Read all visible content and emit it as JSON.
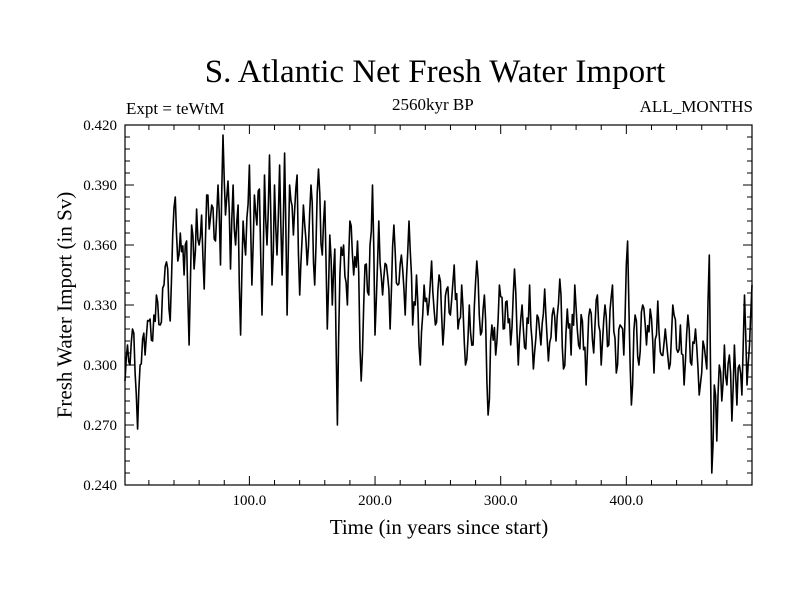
{
  "chart_data": {
    "type": "line",
    "title": "S. Atlantic Net Fresh Water Import",
    "subtitle": "2560kyr BP",
    "experiment_label": "Expt = teWtM",
    "period_label": "ALL_MONTHS",
    "xlabel": "Time (in years since start)",
    "ylabel": "Fresh Water Import (in Sv)",
    "xlim": [
      1,
      500
    ],
    "ylim": [
      0.24,
      0.42
    ],
    "x_ticks": [
      100,
      200,
      300,
      400
    ],
    "x_tick_labels": [
      "100.0",
      "200.0",
      "300.0",
      "400.0"
    ],
    "y_ticks": [
      0.24,
      0.27,
      0.3,
      0.33,
      0.36,
      0.39,
      0.42
    ],
    "y_tick_labels": [
      "0.240",
      "0.270",
      "0.300",
      "0.330",
      "0.360",
      "0.390",
      "0.420"
    ],
    "grid": false,
    "series": [
      {
        "name": "Fresh Water Import",
        "color": "#000000",
        "anchor_points": [
          [
            1,
            0.292
          ],
          [
            3,
            0.31
          ],
          [
            5,
            0.3
          ],
          [
            7,
            0.318
          ],
          [
            9,
            0.296
          ],
          [
            11,
            0.268
          ],
          [
            13,
            0.3
          ],
          [
            15,
            0.313
          ],
          [
            17,
            0.305
          ],
          [
            20,
            0.322
          ],
          [
            23,
            0.312
          ],
          [
            26,
            0.335
          ],
          [
            29,
            0.32
          ],
          [
            32,
            0.34
          ],
          [
            35,
            0.348
          ],
          [
            37,
            0.322
          ],
          [
            39,
            0.365
          ],
          [
            41,
            0.384
          ],
          [
            43,
            0.352
          ],
          [
            45,
            0.366
          ],
          [
            48,
            0.345
          ],
          [
            50,
            0.362
          ],
          [
            52,
            0.31
          ],
          [
            54,
            0.37
          ],
          [
            56,
            0.348
          ],
          [
            58,
            0.378
          ],
          [
            60,
            0.36
          ],
          [
            62,
            0.375
          ],
          [
            64,
            0.338
          ],
          [
            66,
            0.385
          ],
          [
            68,
            0.368
          ],
          [
            70,
            0.38
          ],
          [
            73,
            0.362
          ],
          [
            75,
            0.39
          ],
          [
            77,
            0.35
          ],
          [
            79,
            0.415
          ],
          [
            81,
            0.375
          ],
          [
            83,
            0.392
          ],
          [
            85,
            0.348
          ],
          [
            87,
            0.39
          ],
          [
            89,
            0.36
          ],
          [
            91,
            0.38
          ],
          [
            93,
            0.315
          ],
          [
            95,
            0.372
          ],
          [
            97,
            0.355
          ],
          [
            100,
            0.4
          ],
          [
            102,
            0.34
          ],
          [
            104,
            0.385
          ],
          [
            106,
            0.37
          ],
          [
            108,
            0.388
          ],
          [
            110,
            0.325
          ],
          [
            112,
            0.395
          ],
          [
            114,
            0.36
          ],
          [
            116,
            0.405
          ],
          [
            118,
            0.34
          ],
          [
            120,
            0.39
          ],
          [
            122,
            0.355
          ],
          [
            124,
            0.4
          ],
          [
            126,
            0.345
          ],
          [
            128,
            0.406
          ],
          [
            130,
            0.325
          ],
          [
            132,
            0.39
          ],
          [
            135,
            0.365
          ],
          [
            138,
            0.395
          ],
          [
            140,
            0.335
          ],
          [
            143,
            0.38
          ],
          [
            146,
            0.35
          ],
          [
            149,
            0.39
          ],
          [
            152,
            0.34
          ],
          [
            155,
            0.398
          ],
          [
            158,
            0.355
          ],
          [
            160,
            0.382
          ],
          [
            162,
            0.318
          ],
          [
            164,
            0.365
          ],
          [
            166,
            0.33
          ],
          [
            168,
            0.358
          ],
          [
            170,
            0.27
          ],
          [
            172,
            0.345
          ],
          [
            175,
            0.36
          ],
          [
            178,
            0.33
          ],
          [
            180,
            0.372
          ],
          [
            183,
            0.345
          ],
          [
            186,
            0.362
          ],
          [
            189,
            0.292
          ],
          [
            192,
            0.35
          ],
          [
            195,
            0.335
          ],
          [
            198,
            0.39
          ],
          [
            200,
            0.315
          ],
          [
            203,
            0.372
          ],
          [
            206,
            0.335
          ],
          [
            209,
            0.35
          ],
          [
            212,
            0.318
          ],
          [
            215,
            0.37
          ],
          [
            218,
            0.34
          ],
          [
            221,
            0.355
          ],
          [
            224,
            0.325
          ],
          [
            227,
            0.372
          ],
          [
            230,
            0.32
          ],
          [
            233,
            0.345
          ],
          [
            236,
            0.3
          ],
          [
            239,
            0.34
          ],
          [
            242,
            0.325
          ],
          [
            245,
            0.352
          ],
          [
            248,
            0.32
          ],
          [
            251,
            0.345
          ],
          [
            254,
            0.31
          ],
          [
            257,
            0.338
          ],
          [
            260,
            0.325
          ],
          [
            263,
            0.35
          ],
          [
            266,
            0.318
          ],
          [
            269,
            0.34
          ],
          [
            272,
            0.3
          ],
          [
            275,
            0.33
          ],
          [
            278,
            0.31
          ],
          [
            281,
            0.352
          ],
          [
            284,
            0.315
          ],
          [
            287,
            0.335
          ],
          [
            290,
            0.275
          ],
          [
            293,
            0.32
          ],
          [
            296,
            0.305
          ],
          [
            299,
            0.34
          ],
          [
            302,
            0.318
          ],
          [
            305,
            0.332
          ],
          [
            308,
            0.31
          ],
          [
            311,
            0.348
          ],
          [
            314,
            0.3
          ],
          [
            317,
            0.33
          ],
          [
            320,
            0.308
          ],
          [
            323,
            0.34
          ],
          [
            326,
            0.298
          ],
          [
            329,
            0.325
          ],
          [
            332,
            0.31
          ],
          [
            335,
            0.338
          ],
          [
            338,
            0.302
          ],
          [
            341,
            0.325
          ],
          [
            344,
            0.312
          ],
          [
            347,
            0.343
          ],
          [
            350,
            0.298
          ],
          [
            353,
            0.328
          ],
          [
            356,
            0.305
          ],
          [
            359,
            0.34
          ],
          [
            362,
            0.31
          ],
          [
            365,
            0.322
          ],
          [
            368,
            0.29
          ],
          [
            371,
            0.328
          ],
          [
            374,
            0.306
          ],
          [
            377,
            0.335
          ],
          [
            380,
            0.3
          ],
          [
            383,
            0.33
          ],
          [
            386,
            0.31
          ],
          [
            389,
            0.34
          ],
          [
            392,
            0.296
          ],
          [
            395,
            0.32
          ],
          [
            398,
            0.305
          ],
          [
            401,
            0.362
          ],
          [
            404,
            0.28
          ],
          [
            407,
            0.325
          ],
          [
            410,
            0.3
          ],
          [
            413,
            0.33
          ],
          [
            416,
            0.31
          ],
          [
            419,
            0.328
          ],
          [
            422,
            0.296
          ],
          [
            425,
            0.332
          ],
          [
            428,
            0.305
          ],
          [
            431,
            0.318
          ],
          [
            434,
            0.298
          ],
          [
            437,
            0.33
          ],
          [
            440,
            0.308
          ],
          [
            443,
            0.32
          ],
          [
            446,
            0.29
          ],
          [
            449,
            0.325
          ],
          [
            452,
            0.3
          ],
          [
            455,
            0.318
          ],
          [
            458,
            0.285
          ],
          [
            461,
            0.312
          ],
          [
            464,
            0.298
          ],
          [
            466,
            0.355
          ],
          [
            468,
            0.246
          ],
          [
            470,
            0.29
          ],
          [
            472,
            0.262
          ],
          [
            474,
            0.3
          ],
          [
            476,
            0.282
          ],
          [
            478,
            0.31
          ],
          [
            480,
            0.29
          ],
          [
            482,
            0.305
          ],
          [
            484,
            0.272
          ],
          [
            486,
            0.31
          ],
          [
            488,
            0.28
          ],
          [
            490,
            0.3
          ],
          [
            492,
            0.285
          ],
          [
            494,
            0.335
          ],
          [
            496,
            0.29
          ],
          [
            498,
            0.31
          ],
          [
            500,
            0.34
          ]
        ]
      }
    ]
  }
}
